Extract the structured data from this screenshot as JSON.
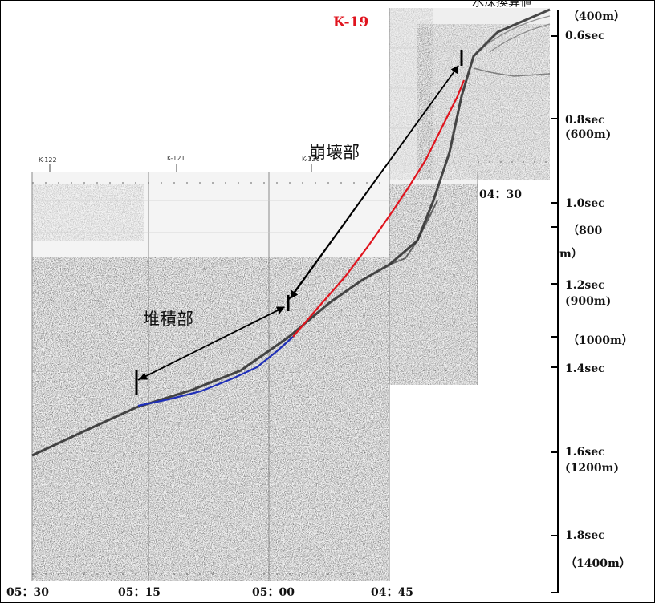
{
  "header": {
    "top_text": "水深換算値",
    "line_label": "K-19"
  },
  "annotations": {
    "collapse": "崩壊部",
    "deposit": "堆積部"
  },
  "track_marks": [
    "K-122",
    "K-121",
    "K-120"
  ],
  "time_axis": [
    "05：30",
    "05：15",
    "05：00",
    "04：45"
  ],
  "time_upper": "04：30",
  "depth_axis": {
    "ticks": [
      "0.6sec",
      "0.8sec",
      "1.0sec",
      "1.2sec",
      "1.4sec",
      "1.6sec",
      "1.8sec"
    ],
    "depths": [
      "（400m）",
      "(600m)",
      "（800",
      "m）",
      "(900m)",
      "（1000m）",
      "(1200m)",
      "（1400m）"
    ]
  },
  "colors": {
    "collapse_line": "#e0141e",
    "deposit_line": "#1f2fb8",
    "title": "#e0141e"
  }
}
